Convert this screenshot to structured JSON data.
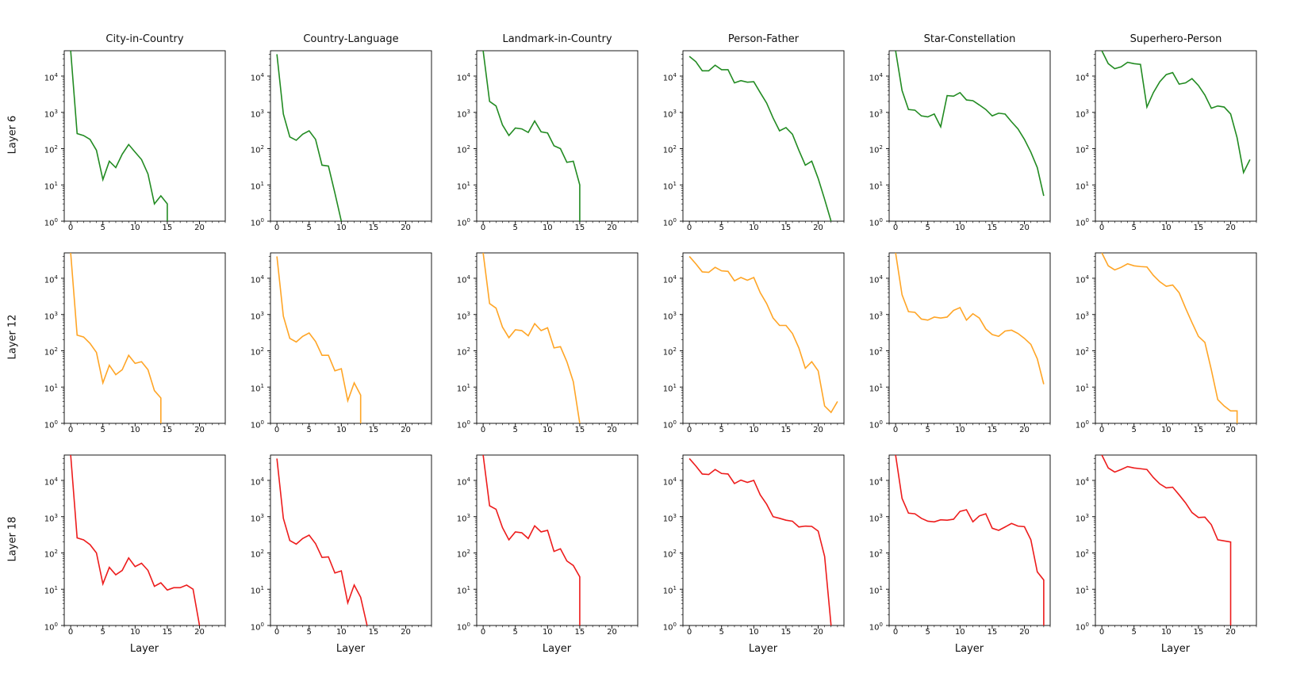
{
  "figure": {
    "background": "#ffffff",
    "spine_color": "#000000"
  },
  "chart_data": {
    "type": "line",
    "title": "",
    "xlabel": "Layer",
    "ylabel": "",
    "x_ticks": [
      0,
      5,
      10,
      15,
      20
    ],
    "xlim": [
      -1,
      24
    ],
    "ylim": [
      1,
      50000
    ],
    "y_scale": "log",
    "y_tick_exponents": [
      0,
      1,
      2,
      3,
      4
    ],
    "grid": false,
    "legend": "none",
    "col_titles": [
      "City-in-Country",
      "Country-Language",
      "Landmark-in-Country",
      "Person-Father",
      "Star-Constellation",
      "Superhero-Person"
    ],
    "row_labels": [
      "Layer 6",
      "Layer 12",
      "Layer 18"
    ],
    "row_colors": [
      "#228b22",
      "#ffa526",
      "#ed1c1c"
    ],
    "series": [
      {
        "row": 0,
        "col": 0,
        "name": "City-in-Country / Layer 6",
        "values": [
          50000,
          260,
          230,
          180,
          90,
          14,
          45,
          30,
          70,
          130,
          80,
          50,
          20,
          3,
          5,
          3
        ],
        "ends_at_bottom": true
      },
      {
        "row": 0,
        "col": 1,
        "name": "Country-Language / Layer 6",
        "values": [
          40000,
          900,
          210,
          170,
          250,
          310,
          180,
          35,
          33,
          6,
          1
        ],
        "ends_at_bottom": false
      },
      {
        "row": 0,
        "col": 2,
        "name": "Landmark-in-Country / Layer 6",
        "values": [
          50000,
          2000,
          1500,
          450,
          230,
          370,
          350,
          280,
          580,
          290,
          270,
          120,
          100,
          42,
          45,
          10
        ],
        "ends_at_bottom": true
      },
      {
        "row": 0,
        "col": 3,
        "name": "Person-Father / Layer 6",
        "values": [
          35000,
          25000,
          14000,
          14000,
          20000,
          15000,
          15000,
          6500,
          7500,
          6800,
          7000,
          3500,
          1800,
          700,
          310,
          380,
          250,
          90,
          35,
          45,
          15,
          4,
          1
        ],
        "ends_at_bottom": false
      },
      {
        "row": 0,
        "col": 4,
        "name": "Star-Constellation / Layer 6",
        "values": [
          50000,
          4000,
          1200,
          1150,
          800,
          750,
          900,
          400,
          2900,
          2800,
          3500,
          2200,
          2100,
          1600,
          1200,
          800,
          950,
          900,
          550,
          350,
          180,
          80,
          30,
          5
        ],
        "ends_at_bottom": false
      },
      {
        "row": 0,
        "col": 5,
        "name": "Superhero-Person / Layer 6",
        "values": [
          50000,
          22000,
          16000,
          18000,
          24000,
          22000,
          21000,
          1400,
          3500,
          7000,
          11000,
          12500,
          6000,
          6500,
          8500,
          5500,
          3000,
          1300,
          1500,
          1400,
          900,
          200,
          22,
          50
        ],
        "ends_at_bottom": false
      },
      {
        "row": 1,
        "col": 0,
        "name": "City-in-Country / Layer 12",
        "values": [
          50000,
          270,
          240,
          160,
          90,
          13,
          40,
          22,
          30,
          75,
          45,
          50,
          30,
          8,
          5
        ],
        "ends_at_bottom": true
      },
      {
        "row": 1,
        "col": 1,
        "name": "Country-Language / Layer 12",
        "values": [
          40000,
          900,
          220,
          175,
          250,
          310,
          180,
          75,
          75,
          28,
          32,
          4.2,
          13,
          6
        ],
        "ends_at_bottom": true
      },
      {
        "row": 1,
        "col": 2,
        "name": "Landmark-in-Country / Layer 12",
        "values": [
          50000,
          2000,
          1500,
          450,
          230,
          380,
          360,
          260,
          560,
          360,
          430,
          120,
          130,
          50,
          14,
          1
        ],
        "ends_at_bottom": false
      },
      {
        "row": 1,
        "col": 3,
        "name": "Person-Father / Layer 12",
        "values": [
          40000,
          25000,
          15000,
          14500,
          20000,
          16000,
          15500,
          8500,
          10500,
          8800,
          10500,
          4000,
          2000,
          800,
          500,
          500,
          300,
          120,
          33,
          50,
          28,
          3,
          2,
          4
        ],
        "ends_at_bottom": false
      },
      {
        "row": 1,
        "col": 4,
        "name": "Star-Constellation / Layer 12",
        "values": [
          50000,
          3500,
          1200,
          1150,
          750,
          700,
          850,
          800,
          850,
          1300,
          1550,
          700,
          1050,
          800,
          400,
          280,
          250,
          350,
          370,
          300,
          220,
          150,
          60,
          12
        ],
        "ends_at_bottom": false
      },
      {
        "row": 1,
        "col": 5,
        "name": "Superhero-Person / Layer 12",
        "values": [
          50000,
          22000,
          17000,
          20000,
          25000,
          22000,
          21000,
          20500,
          12000,
          8000,
          6000,
          6500,
          4000,
          1500,
          600,
          250,
          170,
          30,
          4.5,
          3,
          2.2,
          2.2
        ],
        "ends_at_bottom": true
      },
      {
        "row": 2,
        "col": 0,
        "name": "City-in-Country / Layer 18",
        "values": [
          50000,
          260,
          230,
          170,
          100,
          14,
          40,
          25,
          33,
          73,
          42,
          52,
          33,
          12,
          15,
          9.5,
          11,
          11,
          13,
          10,
          1
        ],
        "ends_at_bottom": false
      },
      {
        "row": 2,
        "col": 1,
        "name": "Country-Language / Layer 18",
        "values": [
          40000,
          900,
          220,
          175,
          250,
          310,
          180,
          75,
          78,
          28,
          32,
          4.2,
          13,
          6,
          1
        ],
        "ends_at_bottom": false
      },
      {
        "row": 2,
        "col": 2,
        "name": "Landmark-in-Country / Layer 18",
        "values": [
          50000,
          2000,
          1600,
          500,
          230,
          380,
          360,
          250,
          560,
          380,
          420,
          110,
          130,
          60,
          45,
          22
        ],
        "ends_at_bottom": true
      },
      {
        "row": 2,
        "col": 3,
        "name": "Person-Father / Layer 18",
        "values": [
          40000,
          25000,
          15000,
          14500,
          20000,
          15500,
          15000,
          8200,
          10200,
          8800,
          10000,
          4000,
          2200,
          1000,
          900,
          800,
          750,
          520,
          550,
          540,
          400,
          80,
          1
        ],
        "ends_at_bottom": false
      },
      {
        "row": 2,
        "col": 4,
        "name": "Star-Constellation / Layer 18",
        "values": [
          50000,
          3200,
          1250,
          1200,
          900,
          750,
          720,
          820,
          800,
          850,
          1400,
          1550,
          720,
          1050,
          1200,
          480,
          420,
          520,
          650,
          550,
          530,
          230,
          30,
          18
        ],
        "ends_at_bottom": true
      },
      {
        "row": 2,
        "col": 5,
        "name": "Superhero-Person / Layer 18",
        "values": [
          50000,
          22000,
          17000,
          20000,
          24000,
          22000,
          21000,
          20000,
          12000,
          8000,
          6200,
          6500,
          4000,
          2400,
          1300,
          950,
          970,
          600,
          230,
          215,
          200
        ],
        "ends_at_bottom": true
      }
    ]
  }
}
